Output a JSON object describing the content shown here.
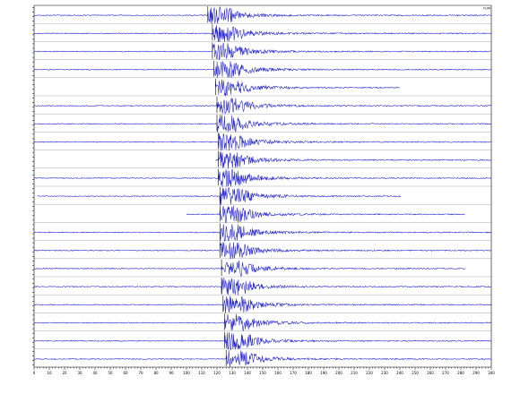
{
  "chart_data": {
    "type": "line",
    "title": "",
    "xlabel": "",
    "ylabel": "",
    "xlim": [
      0,
      300
    ],
    "x_ticks": [
      0,
      10,
      20,
      30,
      40,
      50,
      60,
      70,
      80,
      90,
      100,
      110,
      120,
      130,
      140,
      150,
      160,
      170,
      180,
      190,
      200,
      210,
      220,
      230,
      240,
      250,
      260,
      270,
      280,
      290,
      300
    ],
    "grid": false,
    "legend": "none",
    "colors": {
      "trace": "#1b1bd6",
      "axis": "#000000"
    },
    "series": [
      {
        "name": "FUM",
        "start": 0,
        "end": 300,
        "onset": 114
      },
      {
        "name": "",
        "start": 0,
        "end": 300,
        "onset": 117
      },
      {
        "name": "",
        "start": 0,
        "end": 300,
        "onset": 117
      },
      {
        "name": "",
        "start": 0,
        "end": 300,
        "onset": 118
      },
      {
        "name": "",
        "start": 119,
        "end": 240,
        "onset": 119
      },
      {
        "name": "",
        "start": 0,
        "end": 300,
        "onset": 120
      },
      {
        "name": "",
        "start": 0,
        "end": 300,
        "onset": 120
      },
      {
        "name": "",
        "start": 0,
        "end": 300,
        "onset": 121
      },
      {
        "name": "",
        "start": 119,
        "end": 300,
        "onset": 121
      },
      {
        "name": "",
        "start": 0,
        "end": 300,
        "onset": 121
      },
      {
        "name": "",
        "start": 2,
        "end": 241,
        "onset": 122
      },
      {
        "name": "",
        "start": 100,
        "end": 283,
        "onset": 122
      },
      {
        "name": "",
        "start": 0,
        "end": 300,
        "onset": 122
      },
      {
        "name": "",
        "start": 0,
        "end": 300,
        "onset": 122
      },
      {
        "name": "",
        "start": 0,
        "end": 283,
        "onset": 123
      },
      {
        "name": "",
        "start": 0,
        "end": 300,
        "onset": 123
      },
      {
        "name": "",
        "start": 0,
        "end": 300,
        "onset": 124
      },
      {
        "name": "",
        "start": 0,
        "end": 300,
        "onset": 125
      },
      {
        "name": "",
        "start": 0,
        "end": 300,
        "onset": 125
      },
      {
        "name": "",
        "start": 0,
        "end": 300,
        "onset": 126
      }
    ]
  }
}
